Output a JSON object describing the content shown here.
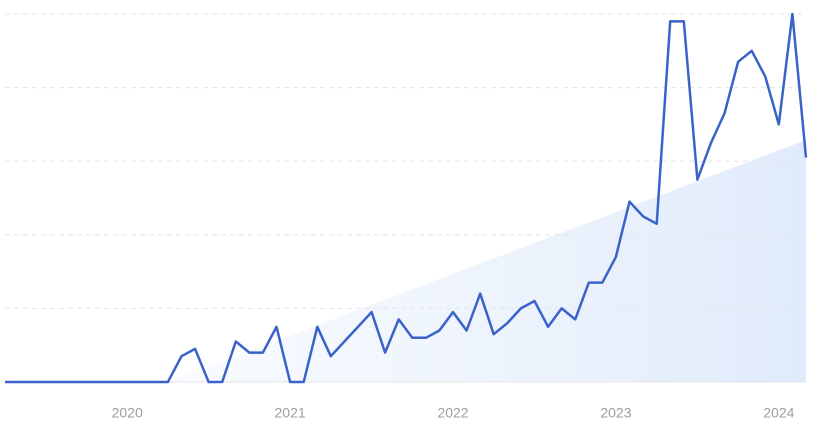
{
  "chart_data": {
    "type": "line",
    "categories": [
      null,
      null,
      null,
      null,
      null,
      null,
      null,
      null,
      null,
      "2020",
      null,
      null,
      null,
      null,
      null,
      null,
      null,
      null,
      null,
      null,
      null,
      "2021",
      null,
      null,
      null,
      null,
      null,
      null,
      null,
      null,
      null,
      null,
      null,
      "2022",
      null,
      null,
      null,
      null,
      null,
      null,
      null,
      null,
      null,
      null,
      null,
      "2023",
      null,
      null,
      null,
      null,
      null,
      null,
      null,
      null,
      null,
      null,
      null,
      "2024",
      null,
      null
    ],
    "series": [
      {
        "color": "#3a63c9",
        "values": [
          0,
          0,
          0,
          0,
          0,
          0,
          0,
          0,
          0,
          0,
          0,
          0,
          0,
          7,
          9,
          0,
          0,
          11,
          8,
          8,
          15,
          0,
          0,
          15,
          7,
          11,
          15,
          19,
          8,
          17,
          12,
          12,
          14,
          19,
          14,
          24,
          13,
          16,
          20,
          22,
          15,
          20,
          17,
          27,
          27,
          34,
          49,
          45,
          43,
          98,
          98,
          55,
          65,
          73,
          87,
          90,
          83,
          70,
          100,
          61
        ]
      }
    ],
    "ylim": [
      0,
      100
    ],
    "yticks": [
      0,
      20,
      40,
      60,
      80,
      100
    ],
    "grid": true
  }
}
